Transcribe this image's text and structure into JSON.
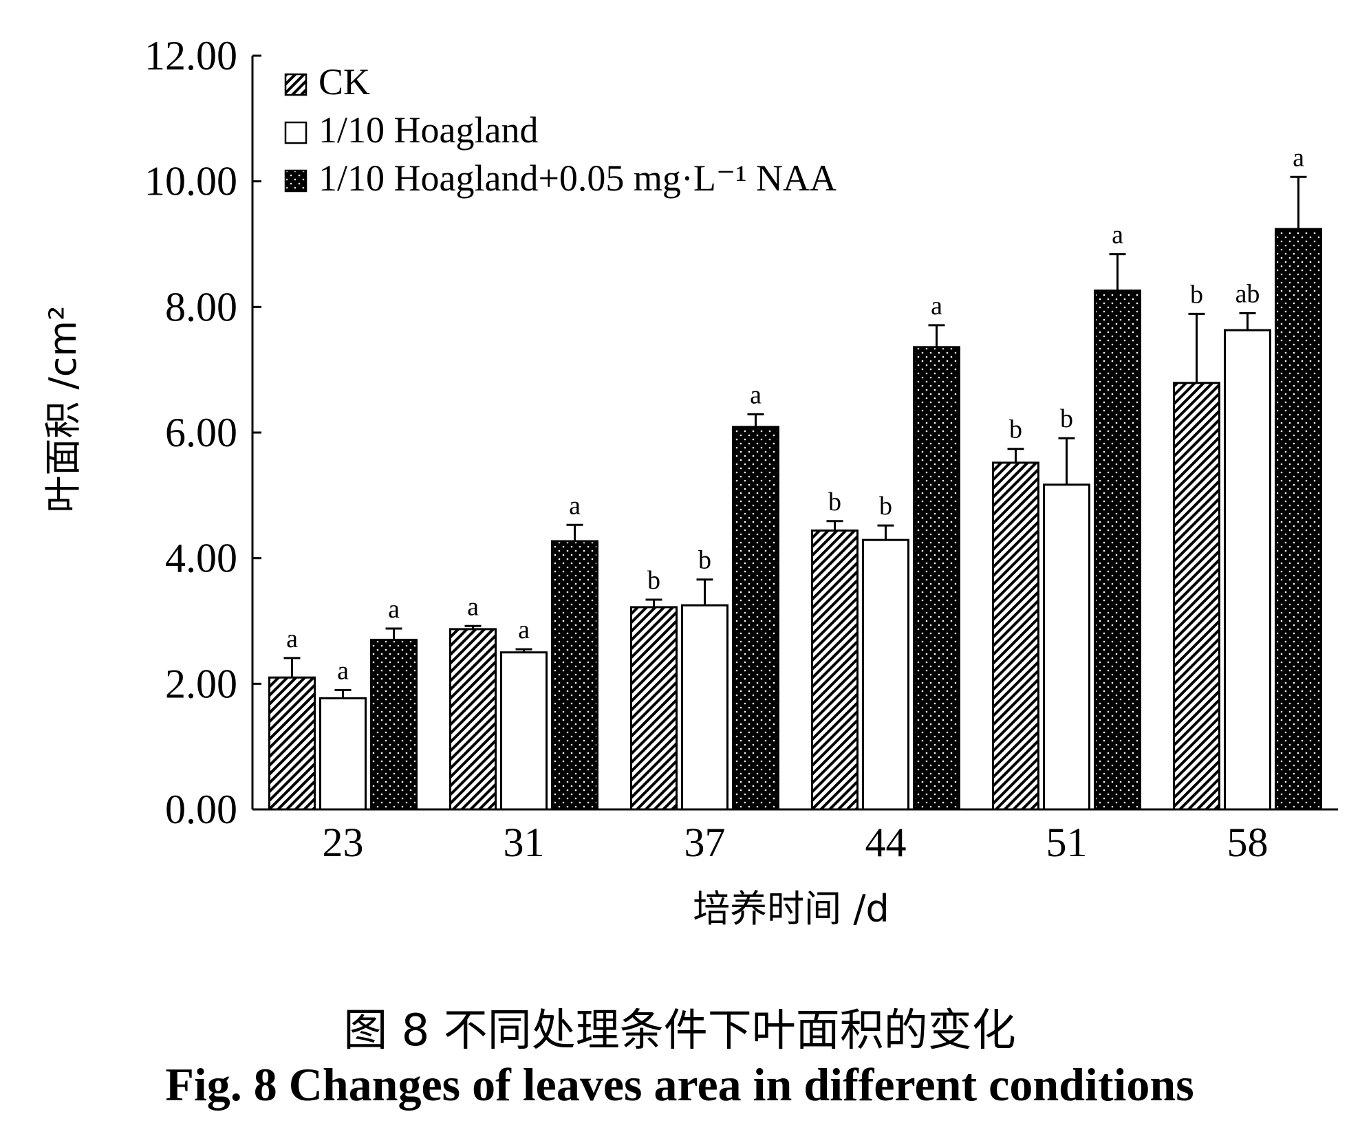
{
  "chart_data": {
    "type": "bar",
    "title": "",
    "xlabel": "培养时间 /d",
    "ylabel": "叶面积 /cm²",
    "categories": [
      "23",
      "31",
      "37",
      "44",
      "51",
      "58"
    ],
    "ylim": [
      0,
      12
    ],
    "yticks": [
      "0.00",
      "2.00",
      "4.00",
      "6.00",
      "8.00",
      "10.00",
      "12.00"
    ],
    "legend_position": "top-left",
    "series": [
      {
        "name": "CK",
        "pattern": "diagonal-hatch",
        "values": [
          2.1,
          2.87,
          3.22,
          4.44,
          5.52,
          6.79
        ],
        "errors": [
          0.31,
          0.05,
          0.12,
          0.15,
          0.22,
          1.1
        ],
        "significance": [
          "a",
          "a",
          "b",
          "b",
          "b",
          "b"
        ]
      },
      {
        "name": "1/10 Hoagland",
        "pattern": "white",
        "values": [
          1.77,
          2.5,
          3.25,
          4.29,
          5.17,
          7.63
        ],
        "errors": [
          0.13,
          0.05,
          0.41,
          0.23,
          0.74,
          0.27
        ],
        "significance": [
          "a",
          "a",
          "b",
          "b",
          "b",
          "ab"
        ]
      },
      {
        "name": "1/10 Hoagland+0.05 mg·L⁻¹ NAA",
        "pattern": "dotted-black",
        "values": [
          2.7,
          4.27,
          6.09,
          7.36,
          8.26,
          9.24
        ],
        "errors": [
          0.18,
          0.26,
          0.2,
          0.35,
          0.58,
          0.83
        ],
        "significance": [
          "a",
          "a",
          "a",
          "a",
          "a",
          "a"
        ]
      }
    ]
  },
  "caption": {
    "chinese": "图 8  不同处理条件下叶面积的变化",
    "english": "Fig. 8  Changes of leaves area in different conditions"
  }
}
